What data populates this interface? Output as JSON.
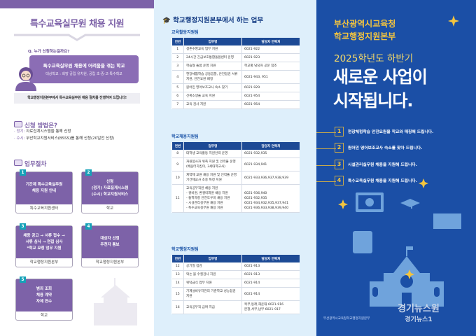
{
  "colors": {
    "purple": "#7d62a8",
    "navy": "#1d4a95",
    "right_bg": "#1b4fa6",
    "yellow": "#f3c43f",
    "mid_bg": "#deeffb"
  },
  "left": {
    "title": "특수교육실무원 채용 지원",
    "question": "Q. 누가 신청하는걸까요?",
    "bubble_main": "특수교육실무원 채용에 어려움을 겪는 학교",
    "bubble_sub": "대상학교 : 희망 공립 유치원, 공립 초·중·고·특수학교",
    "notice": "학교행정지원본부에서 특수교육실무원 채용 절차를 진행하여 드립니다!",
    "how_title": "신청 방법은?",
    "how_items": [
      {
        "key": "· 정기:",
        "text": " 자료집계시스템을 통해 신청"
      },
      {
        "key": "· 수시:",
        "text": " 부산학교지원서비스(BSSS)를 통해 신청(20일전 신청)"
      }
    ],
    "process_title": "업무절차",
    "steps": [
      {
        "num": "1",
        "lines": [
          "기간제 특수교육실무원",
          "채용 지원 안내"
        ],
        "owner": "특수교육지원센터"
      },
      {
        "num": "2",
        "lines": [
          "신청",
          "(정기) 자료집계시스템",
          "(수시) 학교지원서비스"
        ],
        "owner": "학교"
      },
      {
        "num": "3",
        "lines": [
          "채용 공고 → 서류 접수 →",
          "서류 심사 → 면접 심사",
          "*학교 요청 업무 지원"
        ],
        "owner": "학교행정지원본부"
      },
      {
        "num": "4",
        "lines": [
          "대상자 선정",
          "추천자 통보"
        ],
        "owner": "학교행정지원본부"
      },
      {
        "num": "5",
        "lines": [
          "범죄 조회",
          "채용 계약",
          "자체 연수"
        ],
        "owner": "학교"
      }
    ]
  },
  "middle": {
    "title": "학교행정지원본부에서 하는 업무",
    "headers": [
      "연번",
      "업무명",
      "담당자 연락처"
    ],
    "teams": [
      {
        "name": "교육활동지원팀",
        "rows": [
          [
            "1",
            "생존수영교육 업무 지원",
            "6021-922"
          ],
          [
            "2",
            "24시간 긴급보호통합돌봄센터 운영",
            "6021-923"
          ],
          [
            "3",
            "학습형 돌봄 운영 지원",
            "학교별 담당자 공문 참조"
          ],
          [
            "4",
            "현장체험학습 공동입찰, 안전점검 서류지원, 안전요원 배정",
            "6021-943, 951"
          ],
          [
            "5",
            "원어민 영어보조교사 숙소 찾기",
            "6021-929"
          ],
          [
            "6",
            "신복소생술 교육 지원",
            "6021-954"
          ],
          [
            "7",
            "교육 검사 지원",
            "6021-954"
          ]
        ]
      },
      {
        "name": "학교채용지원팀",
        "rows": [
          [
            "8",
            "대학생 교육활동 지원인력 운영",
            "6021-932,935"
          ],
          [
            "9",
            "자원봉사자 위촉 지원 및 인력풀 운영 (배움터지킴이, 3세대학교사)",
            "6021-934,941"
          ],
          [
            "10",
            "계약제 교원 채용 지원 및 인력풀 운영 기간제교사 초중 특정 지원",
            "6021-933,936,937,938,939"
          ],
          [
            "11",
            "교육공무직원 채용 지원\n- 경비원, 환경미화원 채용 지원\n- 통학차량 안전도우미 채용 지원\n- 시설관리실무원 채용 지원\n- 특수교육실무원 채용 지원",
            "\n6021-936,940\n6021-932,935\n6021-934,932,935,937,941\n6021-936,933,938,939,940"
          ]
        ]
      },
      {
        "name": "학교행정지원팀",
        "rows": [
          [
            "12",
            "공기질 점검",
            "6021-913"
          ],
          [
            "13",
            "먹는 물 수질검사 지원",
            "6021-913"
          ],
          [
            "14",
            "위탁급식 업무 지원",
            "6021-914"
          ],
          [
            "15",
            "기계설비유지관리 기준학교 성능점검 지원",
            "6021-914"
          ],
          [
            "16",
            "교육공무직 급여 지급",
            "북부,동래,해운대 6021-916\n본청,서부,남부 6021-917"
          ]
        ]
      }
    ]
  },
  "right": {
    "org1": "부산광역시교육청",
    "org2": "학교행정지원본부",
    "subtitle": "2025학년도 하반기",
    "headline1": "새로운 사업이",
    "headline2": "시작됩니다.",
    "items": [
      {
        "num": "1",
        "text": "현장체험학습 안전요원을 학교와 매칭해 드립니다."
      },
      {
        "num": "2",
        "text": "원어민 영어보조교사 숙소를 찾아 드립니다."
      },
      {
        "num": "3",
        "text": "시설관리실무원 채용을 지원해 드립니다."
      },
      {
        "num": "4",
        "text": "특수교육실무원 채용을 지원해 드립니다."
      }
    ],
    "footer_org": "부산광역시교육청학교행정지원본부",
    "watermark1": "경기뉴스원",
    "watermark2": "경기뉴스1"
  }
}
